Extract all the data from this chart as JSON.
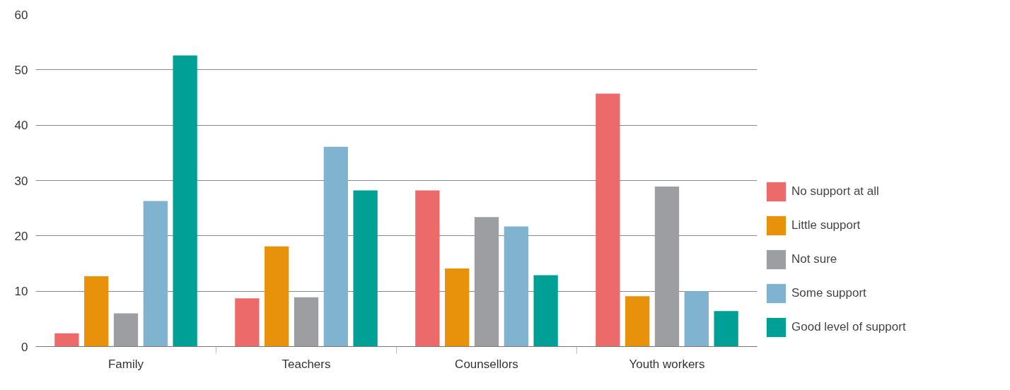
{
  "chart_data": {
    "type": "bar",
    "categories": [
      "Family",
      "Teachers",
      "Counsellors",
      "Youth workers"
    ],
    "series": [
      {
        "name": "No support at all",
        "color": "#ec6a6a",
        "values": [
          2.4,
          8.7,
          28.2,
          45.7
        ]
      },
      {
        "name": "Little support",
        "color": "#e8920c",
        "values": [
          12.7,
          18.1,
          14.1,
          9.1
        ]
      },
      {
        "name": "Not sure",
        "color": "#9d9ea2",
        "values": [
          6.0,
          8.9,
          23.4,
          28.9
        ]
      },
      {
        "name": "Some support",
        "color": "#7fb3d0",
        "values": [
          26.3,
          36.1,
          21.7,
          10.0
        ]
      },
      {
        "name": "Good level of support",
        "color": "#00a096",
        "values": [
          52.6,
          28.2,
          12.9,
          6.4
        ]
      }
    ],
    "ylim": [
      0,
      60
    ],
    "yticks": [
      0,
      10,
      20,
      30,
      40,
      50,
      60
    ],
    "grid": "y",
    "legend": "right"
  }
}
